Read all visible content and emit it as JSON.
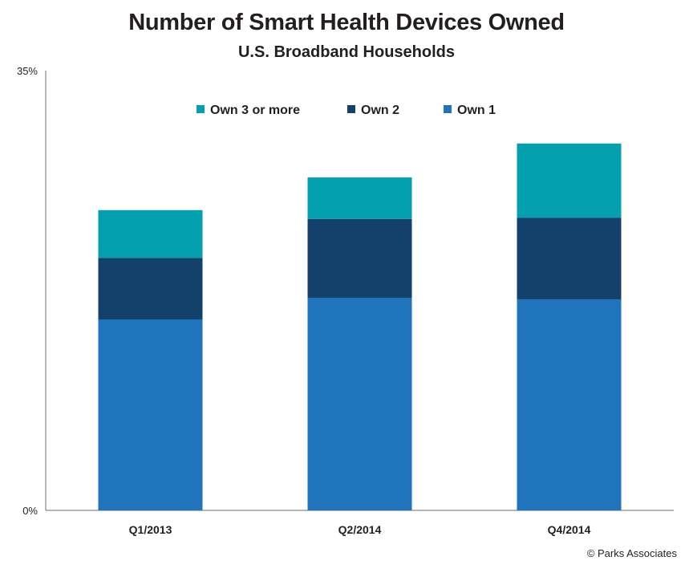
{
  "chart_data": {
    "type": "bar",
    "stacked": true,
    "title": "Number of Smart Health Devices Owned",
    "subtitle": "U.S. Broadband Households",
    "categories": [
      "Q1/2013",
      "Q2/2014",
      "Q4/2014"
    ],
    "y_tick_labels": [
      "0%",
      "35%"
    ],
    "ylim": [
      0,
      35
    ],
    "grid": false,
    "legend_position": "top",
    "series": [
      {
        "name": "Own 1",
        "color": "#1f74bb",
        "values": [
          15.2,
          16.9,
          16.8
        ]
      },
      {
        "name": "Own 2",
        "color": "#13416b",
        "values": [
          4.9,
          6.3,
          6.5
        ]
      },
      {
        "name": "Own 3 or more",
        "color": "#03a0b0",
        "values": [
          3.8,
          3.3,
          5.9
        ]
      }
    ],
    "legend_order": [
      "Own 3 or more",
      "Own 2",
      "Own 1"
    ]
  },
  "footer": {
    "credit": "© Parks Associates"
  }
}
